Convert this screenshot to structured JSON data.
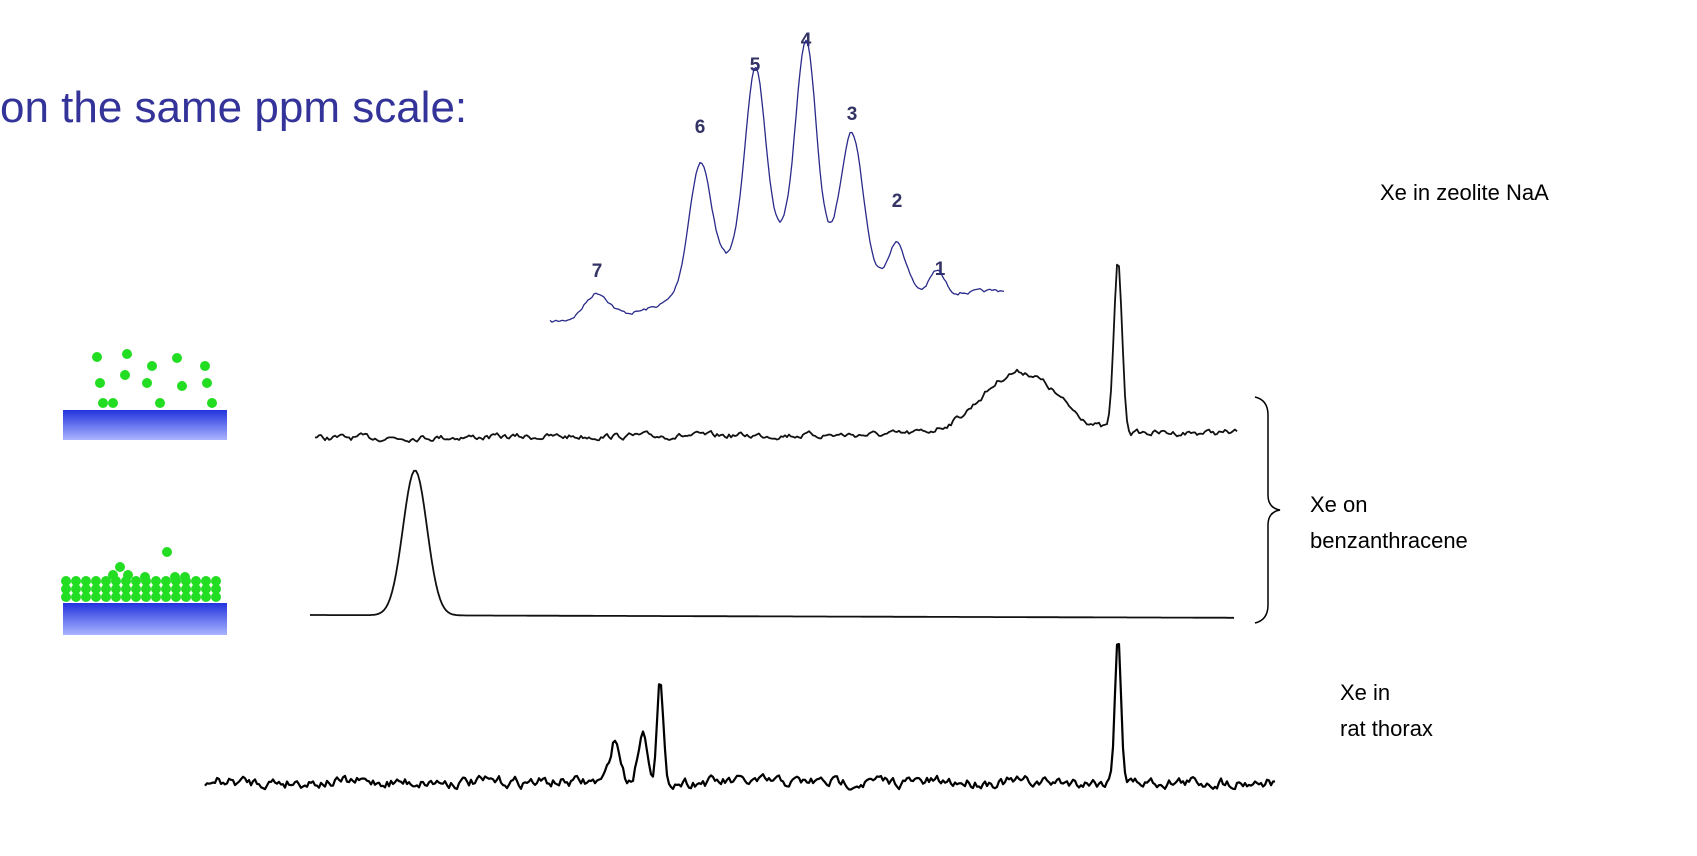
{
  "header": {
    "title": "on the same ppm scale:"
  },
  "peaks": [
    "7",
    "6",
    "5",
    "4",
    "3",
    "2",
    "1"
  ],
  "labels": {
    "zeolite": "Xe in zeolite NaA",
    "benzanthracene": [
      "Xe on",
      "benzanthracene"
    ],
    "thorax": [
      "Xe in",
      "rat thorax"
    ]
  }
}
